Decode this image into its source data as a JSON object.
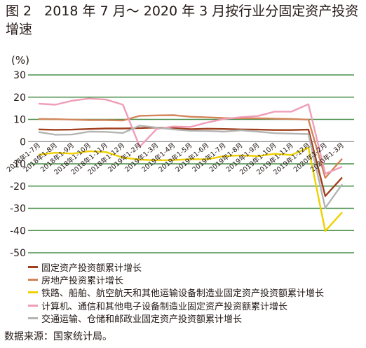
{
  "figure_label": "图 2",
  "title": "2018 年 7 月～ 2020 年 3 月按行业分固定资产投资增速",
  "unit": "(%)",
  "source": "数据来源：国家统计局。",
  "chart_data": {
    "type": "line",
    "title": "2018 年 7 月～ 2020 年 3 月按行业分固定资产投资增速",
    "xlabel": "",
    "ylabel": "(%)",
    "ylim": [
      -50,
      30
    ],
    "yticks": [
      30,
      20,
      10,
      0,
      -10,
      -20,
      -30,
      -40,
      -50
    ],
    "grid": "horizontal",
    "legend_position": "bottom",
    "x": [
      "2018年1-7月",
      "2018年1-8月",
      "2018年1-9月",
      "2018年1-10月",
      "2018年1-11月",
      "2018年1-12月",
      "2019年1-2月",
      "2019年1-3月",
      "2019年1-4月",
      "2019年1-5月",
      "2019年1-6月",
      "2019年1-7月",
      "2019年1-8月",
      "2019年1-9月",
      "2019年1-10月",
      "2019年1-11月",
      "2019年1-12月",
      "2020年1-2月",
      "2020年1-3月"
    ],
    "series": [
      {
        "name": "固定资产投资额累计增长",
        "color": "#a0401e",
        "values": [
          5.5,
          5.3,
          5.4,
          5.7,
          5.9,
          5.9,
          6.1,
          6.3,
          6.1,
          5.6,
          5.8,
          5.7,
          5.5,
          5.4,
          5.2,
          5.2,
          5.4,
          -24.5,
          -16.1
        ]
      },
      {
        "name": "房地产投资累计增长",
        "color": "#d2855a",
        "values": [
          10.2,
          10.1,
          9.9,
          9.7,
          9.7,
          9.5,
          11.6,
          11.8,
          11.9,
          11.2,
          10.9,
          10.6,
          10.5,
          10.5,
          10.3,
          10.2,
          9.9,
          -16.3,
          -7.7
        ]
      },
      {
        "name": "铁路、船舶、航空航天和其他运输设备制造业固定资产投资额累计增长",
        "color": "#f0d000",
        "values": [
          -5.9,
          -5.0,
          -5.4,
          -4.3,
          -4.7,
          -7.2,
          -8.1,
          -8.4,
          -8.3,
          -7.9,
          -8.0,
          -6.5,
          -6.2,
          -6.5,
          -5.5,
          -6.0,
          -2.7,
          -40.2,
          -31.8
        ]
      },
      {
        "name": "计算机、通信和其他电子设备制造业固定资产投资额累计增长",
        "color": "#f09db8",
        "values": [
          17.1,
          16.6,
          18.4,
          19.4,
          18.9,
          16.6,
          -2.3,
          5.7,
          6.8,
          6.6,
          8.6,
          10.2,
          11.0,
          11.5,
          13.5,
          13.5,
          16.8,
          -14.4,
          -11.3
        ]
      },
      {
        "name": "交通运输、仓储和邮政业固定资产投资额累计增长",
        "color": "#b4b4b4",
        "values": [
          4.3,
          3.1,
          3.2,
          4.5,
          4.4,
          3.9,
          7.2,
          6.3,
          5.5,
          4.9,
          4.8,
          4.5,
          5.1,
          4.5,
          3.8,
          3.6,
          3.4,
          -29.8,
          -19.2
        ]
      }
    ]
  }
}
